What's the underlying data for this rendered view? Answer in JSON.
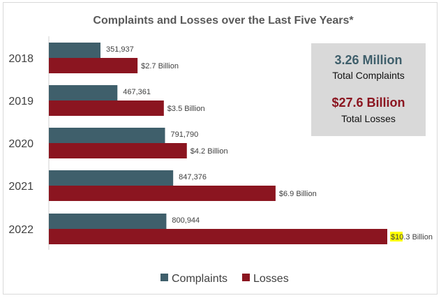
{
  "chart_data": {
    "type": "bar",
    "orientation": "horizontal",
    "title": "Complaints and Losses over the Last Five Years*",
    "categories": [
      "2018",
      "2019",
      "2020",
      "2021",
      "2022"
    ],
    "series": [
      {
        "name": "Complaints",
        "color": "#3f5f6b",
        "values": [
          351937,
          467361,
          791790,
          847376,
          800944
        ],
        "labels": [
          "351,937",
          "467,361",
          "791,790",
          "847,376",
          "800,944"
        ]
      },
      {
        "name": "Losses",
        "color": "#8b1520",
        "values": [
          2.7,
          3.5,
          4.2,
          6.9,
          10.3
        ],
        "unit": "Billion USD",
        "labels": [
          "$2.7 Billion",
          "$3.5 Billion",
          "$4.2 Billion",
          "$6.9 Billion",
          "$10.3 Billion"
        ]
      }
    ],
    "legend": [
      "Complaints",
      "Losses"
    ],
    "legend_position": "bottom",
    "grid": false,
    "summary": {
      "total_complaints_value": "3.26 Million",
      "total_complaints_label": "Total Complaints",
      "total_losses_value": "$27.6 Billion",
      "total_losses_label": "Total Losses"
    },
    "colors": {
      "complaints": "#3f5f6b",
      "losses": "#8b1520",
      "summary_box": "#d9d9d9",
      "highlight": "#ffff00"
    }
  }
}
